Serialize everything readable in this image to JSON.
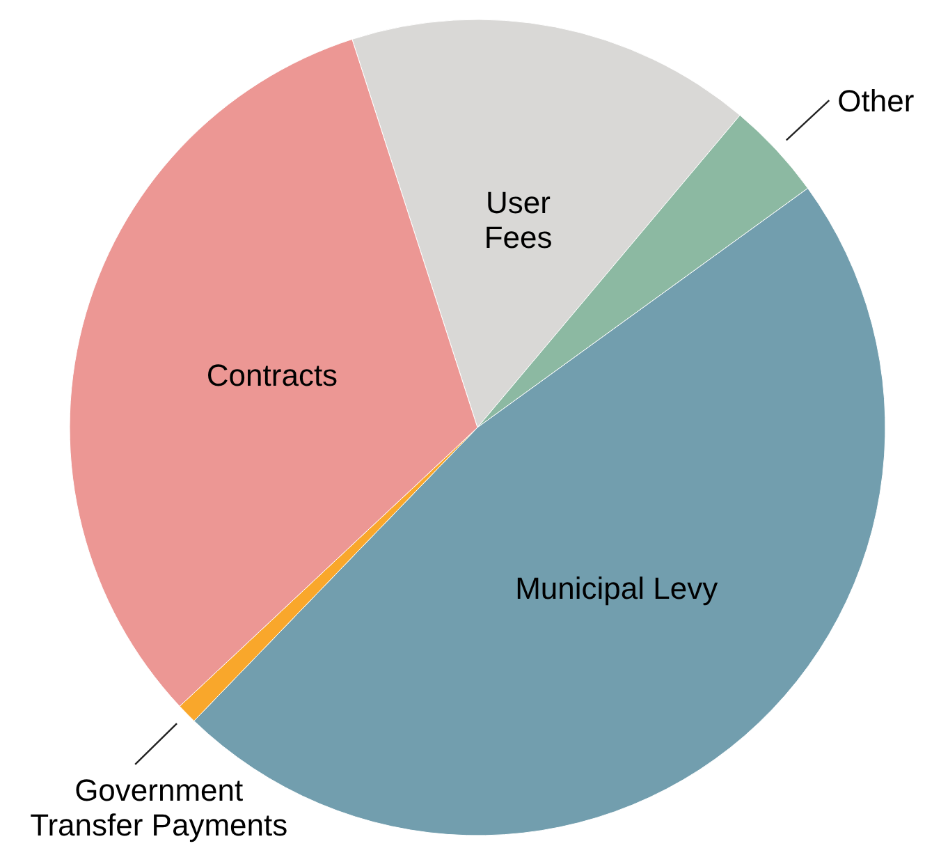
{
  "chart_data": {
    "type": "pie",
    "categories": [
      "User Fees",
      "Other",
      "Municipal Levy",
      "Government Transfer Payments",
      "Contracts"
    ],
    "values": [
      16.1,
      3.9,
      47.2,
      0.8,
      32.0
    ],
    "colors": [
      "#d9d8d6",
      "#8cb9a2",
      "#729eae",
      "#f9a72b",
      "#ec9794"
    ]
  }
}
